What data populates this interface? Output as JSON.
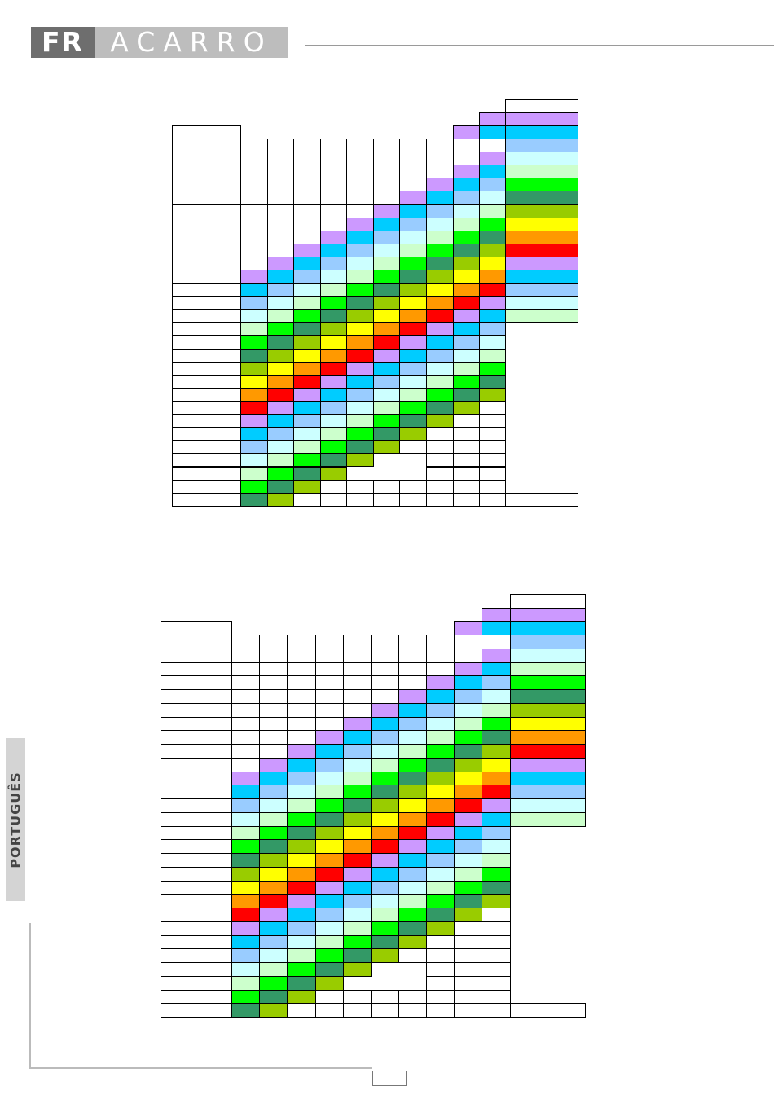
{
  "brand": {
    "logo_dark": "FR",
    "logo_light": "ACARRO",
    "accent_dark": "#6e6e6e",
    "accent_light": "#bdbdbd"
  },
  "side_tab": {
    "label": "PORTUGUÊS"
  },
  "palette": [
    "#cc99ff",
    "#00ccff",
    "#99ccff",
    "#ccffff",
    "#ccffcc",
    "#00ff00",
    "#339966",
    "#99cc00",
    "#ffff00",
    "#ff9900",
    "#ff0000"
  ],
  "tables": [
    {
      "name": "channel-table-1",
      "labels": [],
      "headers": []
    },
    {
      "name": "channel-table-2",
      "labels": [],
      "headers": []
    }
  ]
}
